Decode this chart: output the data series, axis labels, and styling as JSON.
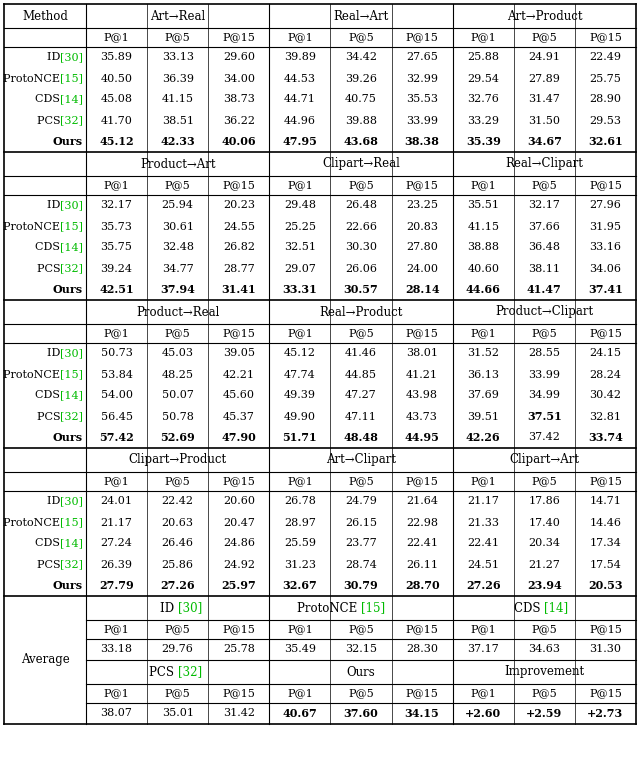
{
  "sections": [
    {
      "header_cols": [
        "Art→Real",
        "Real→Art",
        "Art→Product"
      ],
      "rows": [
        {
          "label": "ID",
          "ref": "30",
          "values": [
            "35.89",
            "33.13",
            "29.60",
            "39.89",
            "34.42",
            "27.65",
            "25.88",
            "24.91",
            "22.49"
          ],
          "bold": []
        },
        {
          "label": "ProtoNCE",
          "ref": "15",
          "values": [
            "40.50",
            "36.39",
            "34.00",
            "44.53",
            "39.26",
            "32.99",
            "29.54",
            "27.89",
            "25.75"
          ],
          "bold": []
        },
        {
          "label": "CDS",
          "ref": "14",
          "values": [
            "45.08",
            "41.15",
            "38.73",
            "44.71",
            "40.75",
            "35.53",
            "32.76",
            "31.47",
            "28.90"
          ],
          "bold": []
        },
        {
          "label": "PCS",
          "ref": "32",
          "values": [
            "41.70",
            "38.51",
            "36.22",
            "44.96",
            "39.88",
            "33.99",
            "33.29",
            "31.50",
            "29.53"
          ],
          "bold": []
        },
        {
          "label": "Ours",
          "ref": "",
          "values": [
            "45.12",
            "42.33",
            "40.06",
            "47.95",
            "43.68",
            "38.38",
            "35.39",
            "34.67",
            "32.61"
          ],
          "bold": [
            0,
            1,
            2,
            3,
            4,
            5,
            6,
            7,
            8
          ]
        }
      ]
    },
    {
      "header_cols": [
        "Product→Art",
        "Clipart→Real",
        "Real→Clipart"
      ],
      "rows": [
        {
          "label": "ID",
          "ref": "30",
          "values": [
            "32.17",
            "25.94",
            "20.23",
            "29.48",
            "26.48",
            "23.25",
            "35.51",
            "32.17",
            "27.96"
          ],
          "bold": []
        },
        {
          "label": "ProtoNCE",
          "ref": "15",
          "values": [
            "35.73",
            "30.61",
            "24.55",
            "25.25",
            "22.66",
            "20.83",
            "41.15",
            "37.66",
            "31.95"
          ],
          "bold": []
        },
        {
          "label": "CDS",
          "ref": "14",
          "values": [
            "35.75",
            "32.48",
            "26.82",
            "32.51",
            "30.30",
            "27.80",
            "38.88",
            "36.48",
            "33.16"
          ],
          "bold": []
        },
        {
          "label": "PCS",
          "ref": "32",
          "values": [
            "39.24",
            "34.77",
            "28.77",
            "29.07",
            "26.06",
            "24.00",
            "40.60",
            "38.11",
            "34.06"
          ],
          "bold": []
        },
        {
          "label": "Ours",
          "ref": "",
          "values": [
            "42.51",
            "37.94",
            "31.41",
            "33.31",
            "30.57",
            "28.14",
            "44.66",
            "41.47",
            "37.41"
          ],
          "bold": [
            0,
            1,
            2,
            3,
            4,
            5,
            6,
            7,
            8
          ]
        }
      ]
    },
    {
      "header_cols": [
        "Product→Real",
        "Real→Product",
        "Product→Clipart"
      ],
      "rows": [
        {
          "label": "ID",
          "ref": "30",
          "values": [
            "50.73",
            "45.03",
            "39.05",
            "45.12",
            "41.46",
            "38.01",
            "31.52",
            "28.55",
            "24.15"
          ],
          "bold": []
        },
        {
          "label": "ProtoNCE",
          "ref": "15",
          "values": [
            "53.84",
            "48.25",
            "42.21",
            "47.74",
            "44.85",
            "41.21",
            "36.13",
            "33.99",
            "28.24"
          ],
          "bold": []
        },
        {
          "label": "CDS",
          "ref": "14",
          "values": [
            "54.00",
            "50.07",
            "45.60",
            "49.39",
            "47.27",
            "43.98",
            "37.69",
            "34.99",
            "30.42"
          ],
          "bold": []
        },
        {
          "label": "PCS",
          "ref": "32",
          "values": [
            "56.45",
            "50.78",
            "45.37",
            "49.90",
            "47.11",
            "43.73",
            "39.51",
            "37.51",
            "32.81"
          ],
          "bold": [
            7
          ]
        },
        {
          "label": "Ours",
          "ref": "",
          "values": [
            "57.42",
            "52.69",
            "47.90",
            "51.71",
            "48.48",
            "44.95",
            "42.26",
            "37.42",
            "33.74"
          ],
          "bold": [
            0,
            1,
            2,
            3,
            4,
            5,
            6,
            8
          ]
        }
      ]
    },
    {
      "header_cols": [
        "Clipart→Product",
        "Art→Clipart",
        "Clipart→Art"
      ],
      "rows": [
        {
          "label": "ID",
          "ref": "30",
          "values": [
            "24.01",
            "22.42",
            "20.60",
            "26.78",
            "24.79",
            "21.64",
            "21.17",
            "17.86",
            "14.71"
          ],
          "bold": []
        },
        {
          "label": "ProtoNCE",
          "ref": "15",
          "values": [
            "21.17",
            "20.63",
            "20.47",
            "28.97",
            "26.15",
            "22.98",
            "21.33",
            "17.40",
            "14.46"
          ],
          "bold": []
        },
        {
          "label": "CDS",
          "ref": "14",
          "values": [
            "27.24",
            "26.46",
            "24.86",
            "25.59",
            "23.77",
            "22.41",
            "22.41",
            "20.34",
            "17.34"
          ],
          "bold": []
        },
        {
          "label": "PCS",
          "ref": "32",
          "values": [
            "26.39",
            "25.86",
            "24.92",
            "31.23",
            "28.74",
            "26.11",
            "24.51",
            "21.27",
            "17.54"
          ],
          "bold": []
        },
        {
          "label": "Ours",
          "ref": "",
          "values": [
            "27.79",
            "27.26",
            "25.97",
            "32.67",
            "30.79",
            "28.70",
            "27.26",
            "23.94",
            "20.53"
          ],
          "bold": [
            0,
            1,
            2,
            3,
            4,
            5,
            6,
            7,
            8
          ]
        }
      ]
    }
  ],
  "average": {
    "hr1_labels": [
      "ID",
      "ProtoNCE",
      "CDS"
    ],
    "hr1_refs": [
      "30",
      "15",
      "14"
    ],
    "data1": [
      "33.18",
      "29.76",
      "25.78",
      "35.49",
      "32.15",
      "28.30",
      "37.17",
      "34.63",
      "31.30"
    ],
    "bold1": [],
    "hr2_labels": [
      "PCS",
      "Ours",
      "Improvement"
    ],
    "hr2_refs": [
      "32",
      "",
      ""
    ],
    "data2": [
      "38.07",
      "35.01",
      "31.42",
      "40.67",
      "37.60",
      "34.15",
      "+2.60",
      "+2.59",
      "+2.73"
    ],
    "bold2": [
      3,
      4,
      5,
      6,
      7,
      8
    ]
  },
  "ref_color": "#00bb00",
  "text_color": "#000000",
  "bg_color": "#ffffff"
}
